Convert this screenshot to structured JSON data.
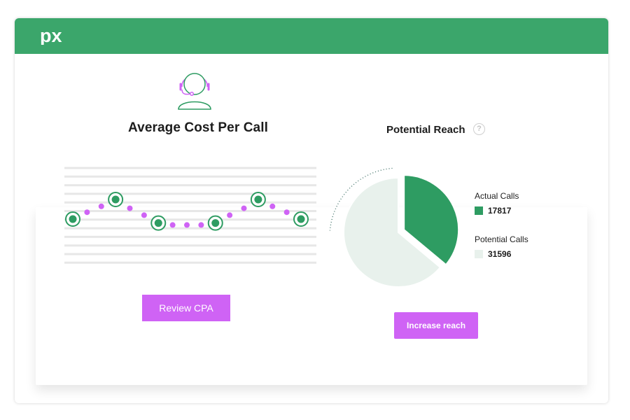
{
  "header": {
    "logo_text": "px",
    "color": "#3ba66b"
  },
  "cost_panel": {
    "icon": "headset-agent-icon",
    "title": "Average Cost Per Call",
    "button_label": "Review CPA",
    "accent_color": "#cf63f5",
    "marker_color": "#2e9c62"
  },
  "reach_panel": {
    "title": "Potential Reach",
    "help_icon": "question-circle-icon",
    "button_label": "Increase reach",
    "legend": [
      {
        "label": "Actual Calls",
        "value": "17817",
        "color": "#2e9c62"
      },
      {
        "label": "Potential Calls",
        "value": "31596",
        "color": "#e8f1ec"
      }
    ]
  },
  "chart_data": [
    {
      "type": "line",
      "title": "",
      "series": [
        {
          "values": [
            0,
            0.35,
            0.65,
            1.0,
            0.55,
            0.2,
            -0.2,
            -0.3,
            -0.3,
            -0.3,
            -0.2,
            0.2,
            0.55,
            1.0,
            0.65,
            0.35,
            0
          ]
        }
      ],
      "highlighted_points": [
        0,
        3,
        6,
        10,
        13,
        16
      ],
      "grid": true
    },
    {
      "type": "pie",
      "title": "Potential Reach",
      "categories": [
        "Actual Calls",
        "Potential Calls"
      ],
      "values": [
        17817,
        31596
      ]
    }
  ]
}
